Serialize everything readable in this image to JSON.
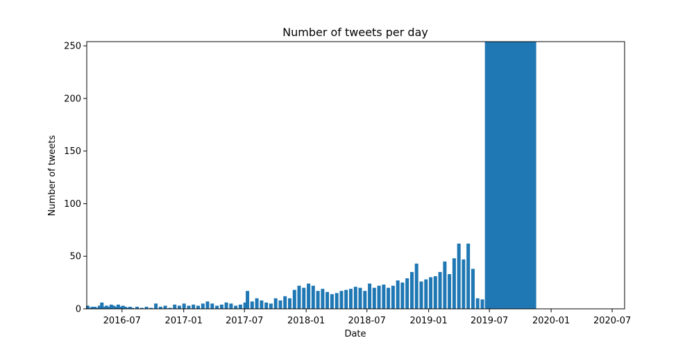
{
  "chart_data": {
    "type": "bar",
    "title": "Number of tweets per day",
    "xlabel": "Date",
    "ylabel": "Number of tweets",
    "x_axis_type": "date",
    "xlim": [
      "2016-03-18",
      "2020-08-07"
    ],
    "ylim": [
      0,
      254
    ],
    "grid": false,
    "legend": "none",
    "bar_color": "#1f77b4",
    "x_ticks": [
      "2016-07",
      "2017-01",
      "2017-07",
      "2018-01",
      "2018-07",
      "2019-01",
      "2019-07",
      "2020-01",
      "2020-07"
    ],
    "y_ticks": [
      "0",
      "50",
      "100",
      "150",
      "200",
      "250"
    ],
    "series": [
      {
        "x": [
          "2016-03-21",
          "2016-03-28",
          "2016-04-04",
          "2016-04-11",
          "2016-04-18",
          "2016-04-25",
          "2016-05-02",
          "2016-05-09",
          "2016-05-16",
          "2016-05-23",
          "2016-05-30",
          "2016-06-06",
          "2016-06-13",
          "2016-06-20",
          "2016-06-27",
          "2016-07-04",
          "2016-07-11",
          "2016-07-18",
          "2016-07-25",
          "2016-08-01",
          "2016-08-15",
          "2016-08-29",
          "2016-09-12",
          "2016-09-26",
          "2016-10-10",
          "2016-10-24",
          "2016-11-07",
          "2016-11-21",
          "2016-12-05",
          "2016-12-19",
          "2017-01-02",
          "2017-01-16",
          "2017-01-30",
          "2017-02-13",
          "2017-02-27",
          "2017-03-13",
          "2017-03-27",
          "2017-04-10",
          "2017-04-24",
          "2017-05-08",
          "2017-05-22",
          "2017-06-05",
          "2017-06-19",
          "2017-07-03",
          "2017-07-10",
          "2017-07-24",
          "2017-08-07",
          "2017-08-21",
          "2017-09-04",
          "2017-09-18",
          "2017-10-02",
          "2017-10-16",
          "2017-10-30",
          "2017-11-13",
          "2017-11-27",
          "2017-12-11",
          "2017-12-25",
          "2018-01-08",
          "2018-01-22",
          "2018-02-05",
          "2018-02-19",
          "2018-03-05",
          "2018-03-19",
          "2018-04-02",
          "2018-04-16",
          "2018-04-30",
          "2018-05-14",
          "2018-05-28",
          "2018-06-11",
          "2018-06-25",
          "2018-07-09",
          "2018-07-23",
          "2018-08-06",
          "2018-08-20",
          "2018-09-03",
          "2018-09-17",
          "2018-10-01",
          "2018-10-15",
          "2018-10-29",
          "2018-11-12",
          "2018-11-26",
          "2018-12-10",
          "2018-12-24",
          "2019-01-07",
          "2019-01-21",
          "2019-02-04",
          "2019-02-18",
          "2019-03-04",
          "2019-03-18",
          "2019-04-01",
          "2019-04-15",
          "2019-04-29",
          "2019-05-13",
          "2019-05-27",
          "2019-06-10",
          "2019-06-24",
          "2019-07-01",
          "2019-07-15",
          "2019-07-29",
          "2019-08-12",
          "2019-08-26",
          "2019-09-09",
          "2019-09-23",
          "2019-10-07",
          "2019-10-21",
          "2019-11-04"
        ],
        "values": [
          3,
          1,
          2,
          2,
          1,
          3,
          6,
          2,
          3,
          2,
          4,
          3,
          2,
          4,
          2,
          3,
          2,
          1,
          2,
          1,
          2,
          1,
          2,
          1,
          5,
          2,
          3,
          1,
          4,
          3,
          5,
          3,
          4,
          3,
          5,
          7,
          5,
          3,
          4,
          6,
          5,
          3,
          4,
          6,
          17,
          7,
          10,
          8,
          6,
          5,
          10,
          8,
          12,
          10,
          18,
          22,
          20,
          24,
          22,
          17,
          19,
          16,
          14,
          15,
          17,
          18,
          19,
          21,
          20,
          17,
          24,
          20,
          22,
          23,
          20,
          22,
          27,
          25,
          29,
          35,
          43,
          26,
          28,
          30,
          31,
          35,
          45,
          33,
          48,
          62,
          47,
          62,
          38,
          10,
          9,
          28,
          255,
          255,
          255,
          255,
          255,
          255,
          255,
          255,
          255,
          255
        ]
      }
    ]
  }
}
